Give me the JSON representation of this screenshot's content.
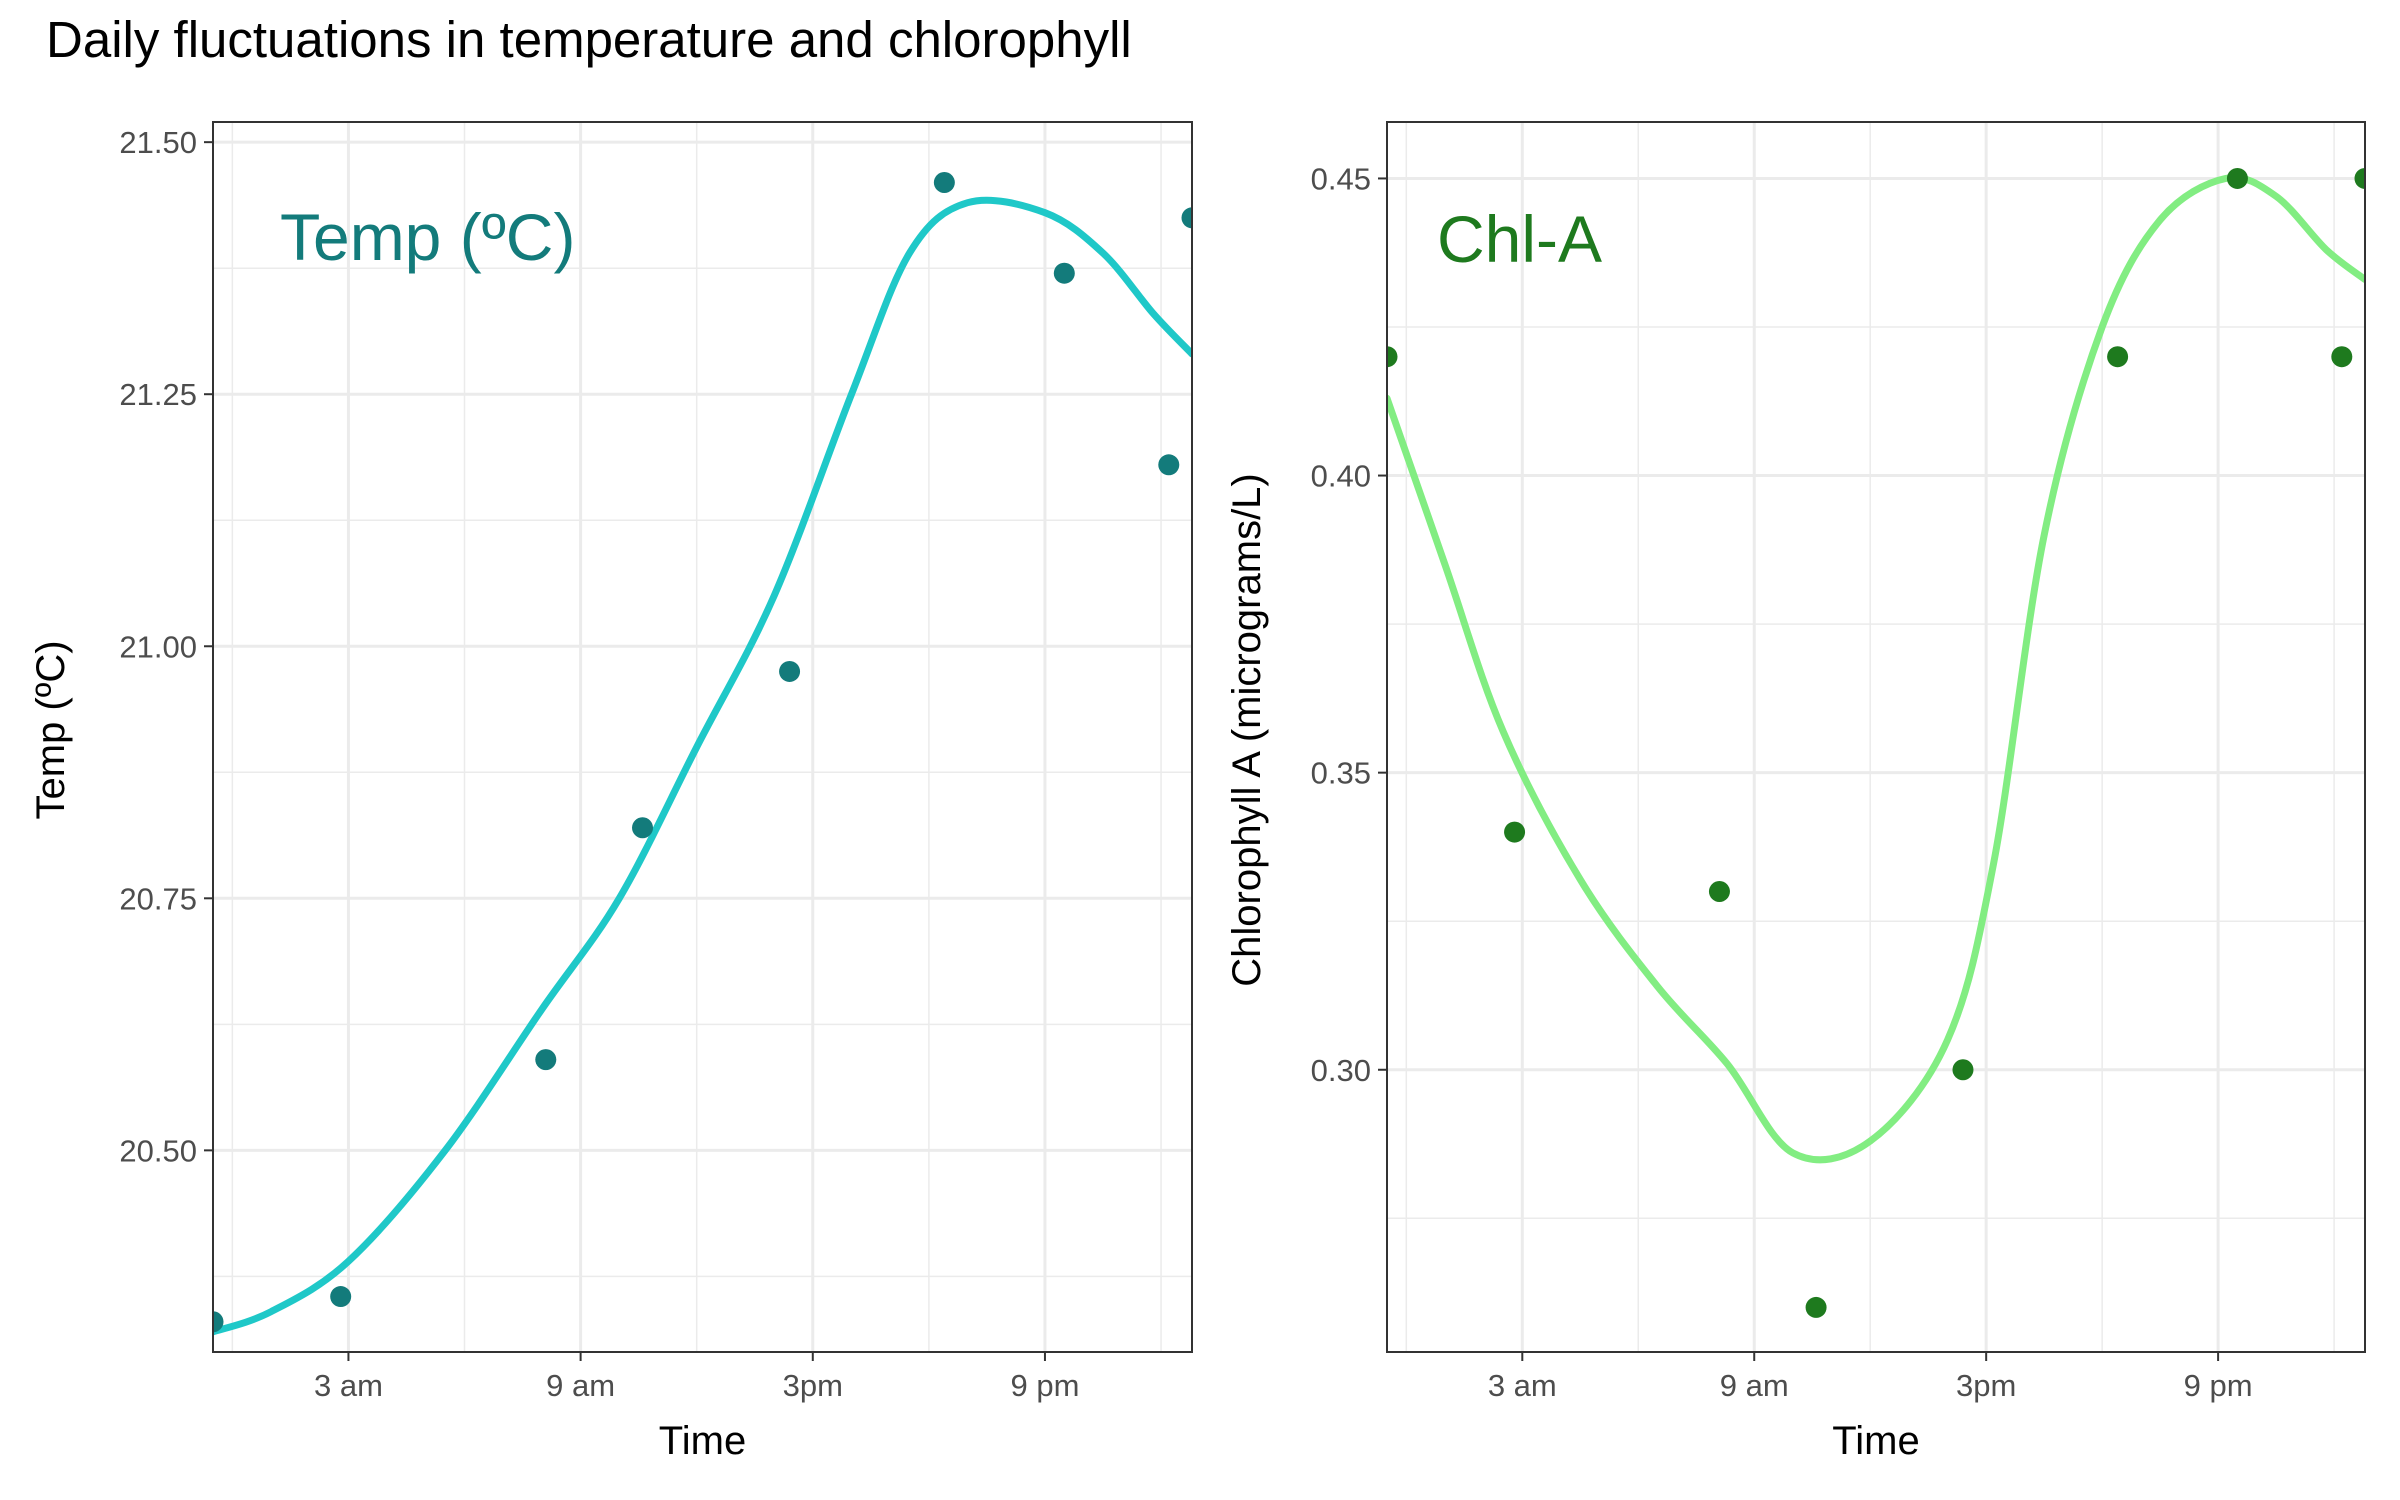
{
  "title": "Daily fluctuations in temperature and chlorophyll",
  "colors": {
    "temp_points": "#137b7b",
    "temp_line": "#1fc8c8",
    "temp_label": "#137b7b",
    "chl_points": "#1e7a1e",
    "chl_line": "#82ed82",
    "chl_label": "#1e7a1e",
    "grid": "#ebebeb",
    "panel_border": "#333333"
  },
  "chart_data": [
    {
      "type": "scatter",
      "panel_label": "Temp (ºC)",
      "xlabel": "Time",
      "ylabel": "Temp (ºC)",
      "x_unit": "hour of day (0 = 12 am; 3 am, 9 am, 3pm, 9 pm ticks)",
      "xlim": [
        0,
        25.3
      ],
      "ylim": [
        20.3,
        21.52
      ],
      "x_ticks": [
        {
          "value": 3.5,
          "label": "3 am"
        },
        {
          "value": 9.5,
          "label": "9 am"
        },
        {
          "value": 15.5,
          "label": "3pm"
        },
        {
          "value": 21.5,
          "label": "9 pm"
        }
      ],
      "y_ticks": [
        {
          "value": 20.5,
          "label": "20.50"
        },
        {
          "value": 20.75,
          "label": "20.75"
        },
        {
          "value": 21.0,
          "label": "21.00"
        },
        {
          "value": 21.25,
          "label": "21.25"
        },
        {
          "value": 21.5,
          "label": "21.50"
        }
      ],
      "points": [
        {
          "x": 0.0,
          "y": 20.33
        },
        {
          "x": 3.3,
          "y": 20.355
        },
        {
          "x": 8.6,
          "y": 20.59
        },
        {
          "x": 11.1,
          "y": 20.82
        },
        {
          "x": 14.9,
          "y": 20.975
        },
        {
          "x": 18.9,
          "y": 21.46
        },
        {
          "x": 22.0,
          "y": 21.37
        },
        {
          "x": 24.7,
          "y": 21.18
        },
        {
          "x": 25.3,
          "y": 21.425
        }
      ],
      "smooth": [
        {
          "x": 0.0,
          "y": 20.32
        },
        {
          "x": 1.5,
          "y": 20.34
        },
        {
          "x": 3.5,
          "y": 20.39
        },
        {
          "x": 6.0,
          "y": 20.5
        },
        {
          "x": 8.5,
          "y": 20.64
        },
        {
          "x": 10.5,
          "y": 20.75
        },
        {
          "x": 12.5,
          "y": 20.9
        },
        {
          "x": 14.5,
          "y": 21.05
        },
        {
          "x": 16.5,
          "y": 21.25
        },
        {
          "x": 18.0,
          "y": 21.39
        },
        {
          "x": 19.5,
          "y": 21.44
        },
        {
          "x": 21.5,
          "y": 21.43
        },
        {
          "x": 23.0,
          "y": 21.39
        },
        {
          "x": 24.3,
          "y": 21.33
        },
        {
          "x": 25.3,
          "y": 21.29
        }
      ]
    },
    {
      "type": "scatter",
      "panel_label": "Chl-A",
      "xlabel": "Time",
      "ylabel": "Chlorophyll A (micrograms/L)",
      "x_unit": "hour of day (0 = 12 am; 3 am, 9 am, 3pm, 9 pm ticks)",
      "xlim": [
        0,
        25.3
      ],
      "ylim": [
        0.2525,
        0.4595
      ],
      "x_ticks": [
        {
          "value": 3.5,
          "label": "3 am"
        },
        {
          "value": 9.5,
          "label": "9 am"
        },
        {
          "value": 15.5,
          "label": "3pm"
        },
        {
          "value": 21.5,
          "label": "9 pm"
        }
      ],
      "y_ticks": [
        {
          "value": 0.3,
          "label": "0.30"
        },
        {
          "value": 0.35,
          "label": "0.35"
        },
        {
          "value": 0.4,
          "label": "0.40"
        },
        {
          "value": 0.45,
          "label": "0.45"
        }
      ],
      "points": [
        {
          "x": 0.0,
          "y": 0.42
        },
        {
          "x": 3.3,
          "y": 0.34
        },
        {
          "x": 8.6,
          "y": 0.33
        },
        {
          "x": 11.1,
          "y": 0.26
        },
        {
          "x": 14.9,
          "y": 0.3
        },
        {
          "x": 18.9,
          "y": 0.42
        },
        {
          "x": 22.0,
          "y": 0.45
        },
        {
          "x": 24.7,
          "y": 0.42
        },
        {
          "x": 25.3,
          "y": 0.45
        }
      ],
      "smooth": [
        {
          "x": 0.0,
          "y": 0.413
        },
        {
          "x": 1.5,
          "y": 0.385
        },
        {
          "x": 3.0,
          "y": 0.357
        },
        {
          "x": 5.0,
          "y": 0.332
        },
        {
          "x": 7.0,
          "y": 0.314
        },
        {
          "x": 8.8,
          "y": 0.301
        },
        {
          "x": 10.5,
          "y": 0.286
        },
        {
          "x": 12.5,
          "y": 0.288
        },
        {
          "x": 14.5,
          "y": 0.305
        },
        {
          "x": 15.7,
          "y": 0.335
        },
        {
          "x": 17.0,
          "y": 0.39
        },
        {
          "x": 18.5,
          "y": 0.425
        },
        {
          "x": 20.0,
          "y": 0.443
        },
        {
          "x": 21.7,
          "y": 0.45
        },
        {
          "x": 23.0,
          "y": 0.447
        },
        {
          "x": 24.3,
          "y": 0.438
        },
        {
          "x": 25.3,
          "y": 0.433
        }
      ]
    }
  ]
}
